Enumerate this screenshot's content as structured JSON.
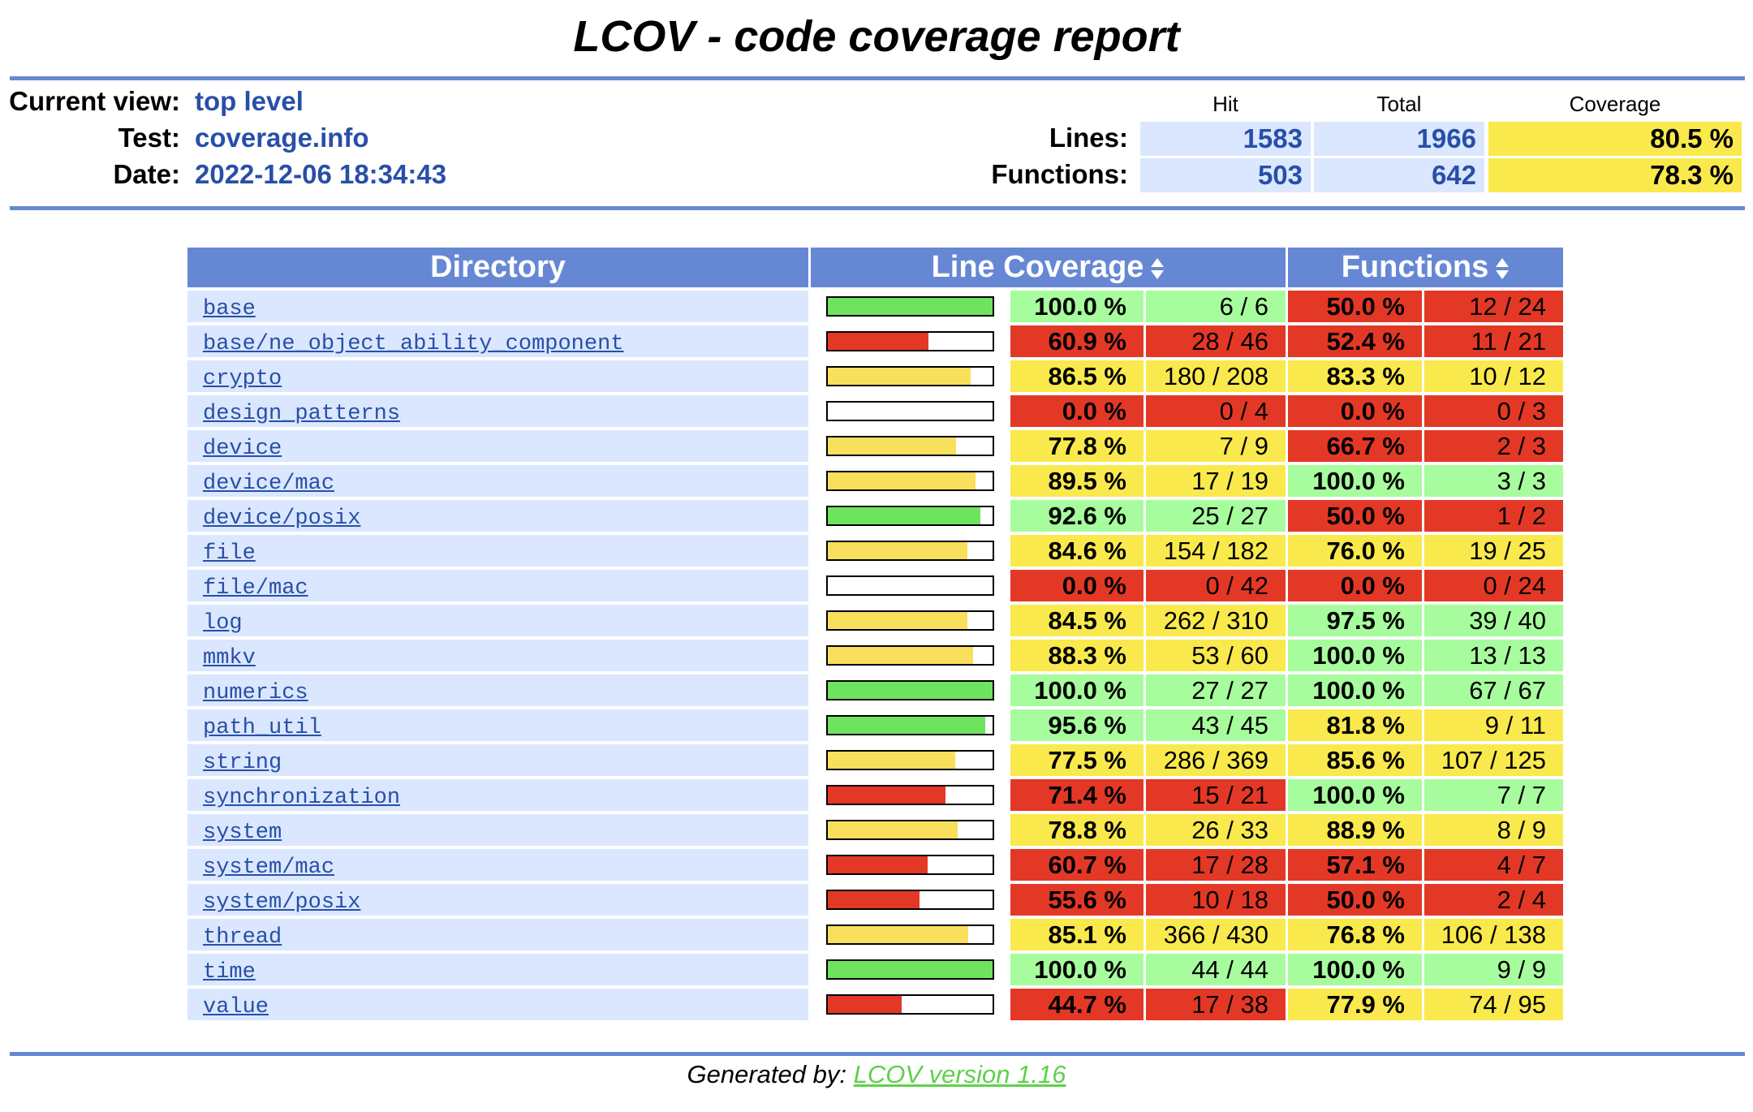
{
  "title": "LCOV - code coverage report",
  "header": {
    "current_view_label": "Current view:",
    "current_view_value": "top level",
    "test_label": "Test:",
    "test_value": "coverage.info",
    "date_label": "Date:",
    "date_value": "2022-12-06 18:34:43",
    "col_hit": "Hit",
    "col_total": "Total",
    "col_coverage": "Coverage",
    "lines_label": "Lines:",
    "lines_hit": "1583",
    "lines_total": "1966",
    "lines_coverage": "80.5 %",
    "functions_label": "Functions:",
    "functions_hit": "503",
    "functions_total": "642",
    "functions_coverage": "78.3 %"
  },
  "table": {
    "col_directory": "Directory",
    "col_line_coverage": "Line Coverage",
    "col_functions": "Functions",
    "rows": [
      {
        "dir": "base",
        "line_pct": "100.0 %",
        "line_cnt": "6 / 6",
        "line_frac": 1.0,
        "func_pct": "50.0 %",
        "func_cnt": "12 / 24"
      },
      {
        "dir": "base/ne_object_ability_component",
        "line_pct": "60.9 %",
        "line_cnt": "28 / 46",
        "line_frac": 0.609,
        "func_pct": "52.4 %",
        "func_cnt": "11 / 21"
      },
      {
        "dir": "crypto",
        "line_pct": "86.5 %",
        "line_cnt": "180 / 208",
        "line_frac": 0.865,
        "func_pct": "83.3 %",
        "func_cnt": "10 / 12"
      },
      {
        "dir": "design_patterns",
        "line_pct": "0.0 %",
        "line_cnt": "0 / 4",
        "line_frac": 0.0,
        "func_pct": "0.0 %",
        "func_cnt": "0 / 3"
      },
      {
        "dir": "device",
        "line_pct": "77.8 %",
        "line_cnt": "7 / 9",
        "line_frac": 0.778,
        "func_pct": "66.7 %",
        "func_cnt": "2 / 3"
      },
      {
        "dir": "device/mac",
        "line_pct": "89.5 %",
        "line_cnt": "17 / 19",
        "line_frac": 0.895,
        "func_pct": "100.0 %",
        "func_cnt": "3 / 3"
      },
      {
        "dir": "device/posix",
        "line_pct": "92.6 %",
        "line_cnt": "25 / 27",
        "line_frac": 0.926,
        "func_pct": "50.0 %",
        "func_cnt": "1 / 2"
      },
      {
        "dir": "file",
        "line_pct": "84.6 %",
        "line_cnt": "154 / 182",
        "line_frac": 0.846,
        "func_pct": "76.0 %",
        "func_cnt": "19 / 25"
      },
      {
        "dir": "file/mac",
        "line_pct": "0.0 %",
        "line_cnt": "0 / 42",
        "line_frac": 0.0,
        "func_pct": "0.0 %",
        "func_cnt": "0 / 24"
      },
      {
        "dir": "log",
        "line_pct": "84.5 %",
        "line_cnt": "262 / 310",
        "line_frac": 0.845,
        "func_pct": "97.5 %",
        "func_cnt": "39 / 40"
      },
      {
        "dir": "mmkv",
        "line_pct": "88.3 %",
        "line_cnt": "53 / 60",
        "line_frac": 0.883,
        "func_pct": "100.0 %",
        "func_cnt": "13 / 13"
      },
      {
        "dir": "numerics",
        "line_pct": "100.0 %",
        "line_cnt": "27 / 27",
        "line_frac": 1.0,
        "func_pct": "100.0 %",
        "func_cnt": "67 / 67"
      },
      {
        "dir": "path_util",
        "line_pct": "95.6 %",
        "line_cnt": "43 / 45",
        "line_frac": 0.956,
        "func_pct": "81.8 %",
        "func_cnt": "9 / 11"
      },
      {
        "dir": "string",
        "line_pct": "77.5 %",
        "line_cnt": "286 / 369",
        "line_frac": 0.775,
        "func_pct": "85.6 %",
        "func_cnt": "107 / 125"
      },
      {
        "dir": "synchronization",
        "line_pct": "71.4 %",
        "line_cnt": "15 / 21",
        "line_frac": 0.714,
        "func_pct": "100.0 %",
        "func_cnt": "7 / 7"
      },
      {
        "dir": "system",
        "line_pct": "78.8 %",
        "line_cnt": "26 / 33",
        "line_frac": 0.788,
        "func_pct": "88.9 %",
        "func_cnt": "8 / 9"
      },
      {
        "dir": "system/mac",
        "line_pct": "60.7 %",
        "line_cnt": "17 / 28",
        "line_frac": 0.607,
        "func_pct": "57.1 %",
        "func_cnt": "4 / 7"
      },
      {
        "dir": "system/posix",
        "line_pct": "55.6 %",
        "line_cnt": "10 / 18",
        "line_frac": 0.556,
        "func_pct": "50.0 %",
        "func_cnt": "2 / 4"
      },
      {
        "dir": "thread",
        "line_pct": "85.1 %",
        "line_cnt": "366 / 430",
        "line_frac": 0.851,
        "func_pct": "76.8 %",
        "func_cnt": "106 / 138"
      },
      {
        "dir": "time",
        "line_pct": "100.0 %",
        "line_cnt": "44 / 44",
        "line_frac": 1.0,
        "func_pct": "100.0 %",
        "func_cnt": "9 / 9"
      },
      {
        "dir": "value",
        "line_pct": "44.7 %",
        "line_cnt": "17 / 38",
        "line_frac": 0.447,
        "func_pct": "77.9 %",
        "func_cnt": "74 / 95"
      }
    ]
  },
  "footer": {
    "generated_by": "Generated by:",
    "link_text": "LCOV version 1.16"
  },
  "colors": {
    "header_blue": "#6688d4",
    "row_bg": "#dae7fe",
    "link": "#284fa8",
    "hi": "#a7fc9d",
    "med": "#f9e94c",
    "lo": "#e43826",
    "bar_hi": "#6ee35e",
    "bar_med": "#f8df5c",
    "bar_lo": "#e43826"
  }
}
